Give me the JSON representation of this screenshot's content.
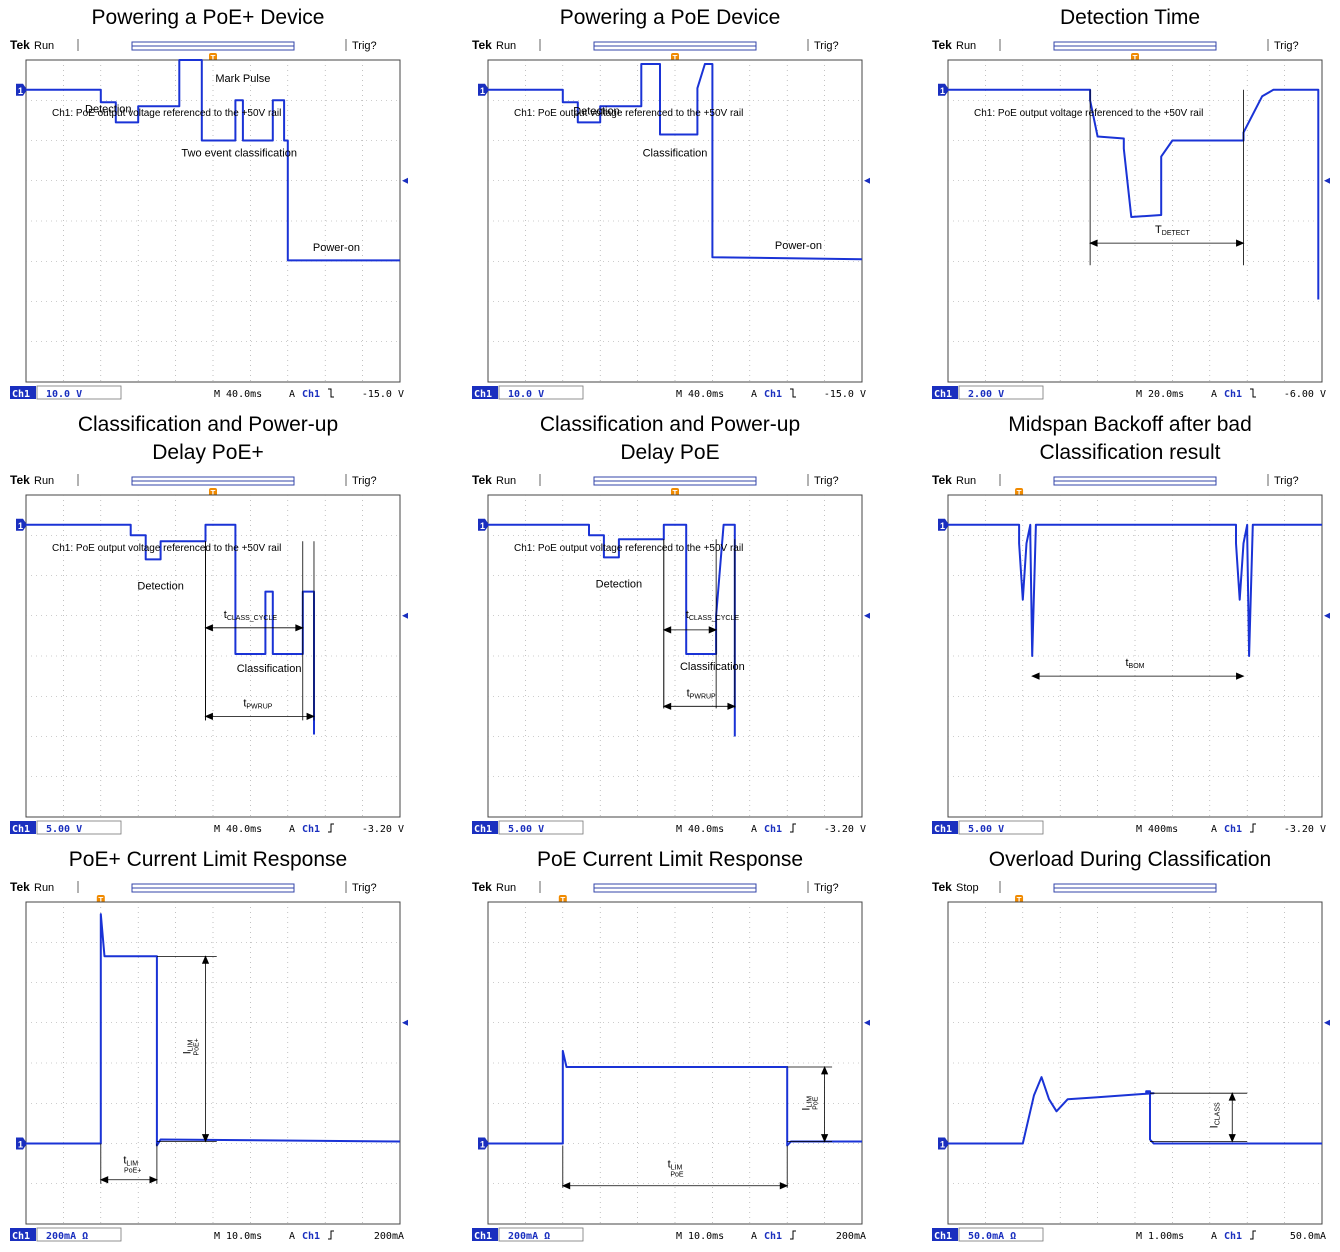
{
  "chart_data": [
    {
      "type": "line",
      "title": "Powering a PoE+ Device",
      "header": {
        "brand": "Tek",
        "status": "Run",
        "trig": "Trig?"
      },
      "footer": {
        "channel": "Ch1",
        "scale": "10.0 V",
        "time": "M 40.0ms",
        "acq": "A",
        "trig_ch": "Ch1",
        "trig_edge": "fall",
        "trig_level": "-15.0 V"
      },
      "note": "Ch1: PoE output voltage referenced to the +50V rail",
      "wave": [
        [
          0,
          0.74
        ],
        [
          0.2,
          0.74
        ],
        [
          0.2,
          1.05
        ],
        [
          0.24,
          1.05
        ],
        [
          0.24,
          1.55
        ],
        [
          0.3,
          1.55
        ],
        [
          0.3,
          1.15
        ],
        [
          0.41,
          1.15
        ],
        [
          0.41,
          0
        ],
        [
          0.47,
          0
        ],
        [
          0.47,
          2
        ],
        [
          0.56,
          2
        ],
        [
          0.56,
          1.0
        ],
        [
          0.58,
          1.0
        ],
        [
          0.58,
          2
        ],
        [
          0.66,
          2
        ],
        [
          0.66,
          1.0
        ],
        [
          0.69,
          1.0
        ],
        [
          0.69,
          2
        ],
        [
          0.7,
          2
        ],
        [
          0.7,
          4.98
        ],
        [
          1.0,
          4.98
        ]
      ],
      "annotations": [
        {
          "text": "Detection",
          "x": 0.22,
          "y": 1.3
        },
        {
          "text": "Mark Pulse",
          "x": 0.58,
          "y": 0.55
        },
        {
          "text": "Two event classification",
          "x": 0.57,
          "y": 2.4
        },
        {
          "text": "Power-on",
          "x": 0.83,
          "y": 4.75
        }
      ],
      "arrows": []
    },
    {
      "type": "line",
      "title": "Powering a PoE Device",
      "header": {
        "brand": "Tek",
        "status": "Run",
        "trig": "Trig?"
      },
      "footer": {
        "channel": "Ch1",
        "scale": "10.0 V",
        "time": "M 40.0ms",
        "acq": "A",
        "trig_ch": "Ch1",
        "trig_edge": "fall",
        "trig_level": "-15.0 V"
      },
      "note": "Ch1: PoE output voltage referenced to the +50V rail",
      "wave": [
        [
          0,
          0.74
        ],
        [
          0.2,
          0.74
        ],
        [
          0.2,
          1.05
        ],
        [
          0.24,
          1.05
        ],
        [
          0.24,
          1.55
        ],
        [
          0.3,
          1.55
        ],
        [
          0.3,
          1.15
        ],
        [
          0.41,
          1.15
        ],
        [
          0.41,
          0.1
        ],
        [
          0.46,
          0.1
        ],
        [
          0.46,
          1.85
        ],
        [
          0.56,
          1.85
        ],
        [
          0.56,
          0.7
        ],
        [
          0.58,
          0.1
        ],
        [
          0.6,
          0.1
        ],
        [
          0.6,
          4.9
        ],
        [
          1.0,
          4.95
        ]
      ],
      "annotations": [
        {
          "text": "Detection",
          "x": 0.29,
          "y": 1.35
        },
        {
          "text": "Classification",
          "x": 0.5,
          "y": 2.4
        },
        {
          "text": "Power-on",
          "x": 0.83,
          "y": 4.7
        }
      ],
      "arrows": []
    },
    {
      "type": "line",
      "title": "Detection Time",
      "header": {
        "brand": "Tek",
        "status": "Run",
        "trig": "Trig?"
      },
      "footer": {
        "channel": "Ch1",
        "scale": "2.00 V",
        "time": "M 20.0ms",
        "acq": "A",
        "trig_ch": "Ch1",
        "trig_edge": "fall",
        "trig_level": "-6.00 V"
      },
      "note": "Ch1: PoE output voltage referenced to the +50V rail",
      "wave": [
        [
          0,
          0.74
        ],
        [
          0.38,
          0.74
        ],
        [
          0.38,
          1.0
        ],
        [
          0.4,
          1.9
        ],
        [
          0.47,
          1.95
        ],
        [
          0.47,
          2.2
        ],
        [
          0.49,
          3.9
        ],
        [
          0.57,
          3.85
        ],
        [
          0.57,
          2.4
        ],
        [
          0.6,
          2.0
        ],
        [
          0.79,
          2.0
        ],
        [
          0.79,
          1.8
        ],
        [
          0.84,
          0.9
        ],
        [
          0.87,
          0.74
        ],
        [
          0.99,
          0.74
        ],
        [
          0.99,
          5.95
        ]
      ],
      "annotations": [
        {
          "text": "T",
          "sub": "DETECT",
          "x": 0.6,
          "y": 4.3
        }
      ],
      "arrows": [
        {
          "x1": 0.38,
          "x2": 0.79,
          "y": 4.55,
          "y_top": 0.74,
          "y_bottom": 5.1
        }
      ]
    },
    {
      "type": "line",
      "title": "Classification and Power-up\nDelay PoE+",
      "header": {
        "brand": "Tek",
        "status": "Run",
        "trig": "Trig?"
      },
      "footer": {
        "channel": "Ch1",
        "scale": "5.00 V",
        "time": "M 40.0ms",
        "acq": "A",
        "trig_ch": "Ch1",
        "trig_edge": "rise",
        "trig_level": "-3.20 V"
      },
      "note": "Ch1: PoE output voltage referenced to the +50V rail",
      "wave": [
        [
          0,
          0.74
        ],
        [
          0.28,
          0.74
        ],
        [
          0.28,
          1.0
        ],
        [
          0.32,
          1.0
        ],
        [
          0.32,
          1.6
        ],
        [
          0.36,
          1.6
        ],
        [
          0.36,
          1.15
        ],
        [
          0.48,
          1.15
        ],
        [
          0.48,
          0.74
        ],
        [
          0.56,
          0.74
        ],
        [
          0.56,
          3.95
        ],
        [
          0.64,
          3.95
        ],
        [
          0.64,
          2.4
        ],
        [
          0.66,
          2.4
        ],
        [
          0.66,
          3.95
        ],
        [
          0.74,
          3.95
        ],
        [
          0.74,
          2.4
        ],
        [
          0.77,
          2.4
        ],
        [
          0.77,
          5.95
        ]
      ],
      "annotations": [
        {
          "text": "Detection",
          "x": 0.36,
          "y": 2.35
        },
        {
          "text": "t",
          "sub": "CLASS_CYCLE",
          "x": 0.6,
          "y": 3.05
        },
        {
          "text": "Classification",
          "x": 0.65,
          "y": 4.4
        },
        {
          "text": "t",
          "sub": "PWRUP",
          "x": 0.62,
          "y": 5.25
        }
      ],
      "arrows": [
        {
          "x1": 0.48,
          "x2": 0.74,
          "y": 3.3,
          "y_top": 1.15,
          "y_bottom": 5.6
        },
        {
          "x1": 0.48,
          "x2": 0.77,
          "y": 5.5,
          "y_top": 1.15,
          "y_bottom": 5.6
        }
      ]
    },
    {
      "type": "line",
      "title": "Classification and Power-up\nDelay PoE",
      "header": {
        "brand": "Tek",
        "status": "Run",
        "trig": "Trig?"
      },
      "footer": {
        "channel": "Ch1",
        "scale": "5.00 V",
        "time": "M 40.0ms",
        "acq": "A",
        "trig_ch": "Ch1",
        "trig_edge": "rise",
        "trig_level": "-3.20 V"
      },
      "note": "Ch1: PoE output voltage referenced to the +50V rail",
      "wave": [
        [
          0,
          0.74
        ],
        [
          0.27,
          0.74
        ],
        [
          0.27,
          1.0
        ],
        [
          0.31,
          1.0
        ],
        [
          0.31,
          1.55
        ],
        [
          0.35,
          1.55
        ],
        [
          0.35,
          1.1
        ],
        [
          0.47,
          1.1
        ],
        [
          0.47,
          0.74
        ],
        [
          0.53,
          0.74
        ],
        [
          0.53,
          3.95
        ],
        [
          0.61,
          3.95
        ],
        [
          0.61,
          3.0
        ],
        [
          0.63,
          0.74
        ],
        [
          0.66,
          0.74
        ],
        [
          0.66,
          6.0
        ]
      ],
      "annotations": [
        {
          "text": "Detection",
          "x": 0.35,
          "y": 2.3
        },
        {
          "text": "t",
          "sub": "CLASS_CYCLE",
          "x": 0.6,
          "y": 3.05
        },
        {
          "text": "Classification",
          "x": 0.6,
          "y": 4.35
        },
        {
          "text": "t",
          "sub": "PWRUP",
          "x": 0.57,
          "y": 5.0
        }
      ],
      "arrows": [
        {
          "x1": 0.47,
          "x2": 0.61,
          "y": 3.35,
          "y_top": 1.1,
          "y_bottom": 5.3
        },
        {
          "x1": 0.47,
          "x2": 0.66,
          "y": 5.25,
          "y_top": 1.1,
          "y_bottom": 5.3
        }
      ]
    },
    {
      "type": "line",
      "title": "Midspan Backoff after bad\nClassification result",
      "header": {
        "brand": "Tek",
        "status": "Run",
        "trig": "Trig?"
      },
      "footer": {
        "channel": "Ch1",
        "scale": "5.00 V",
        "time": "M 400ms",
        "acq": "A",
        "trig_ch": "Ch1",
        "trig_edge": "rise",
        "trig_level": "-3.20 V"
      },
      "note": "",
      "wave": [
        [
          0,
          0.74
        ],
        [
          0.19,
          0.74
        ],
        [
          0.19,
          1.2
        ],
        [
          0.2,
          2.6
        ],
        [
          0.21,
          1.2
        ],
        [
          0.22,
          0.74
        ],
        [
          0.22,
          1.0
        ],
        [
          0.225,
          4.0
        ],
        [
          0.235,
          0.74
        ],
        [
          0.77,
          0.74
        ],
        [
          0.77,
          1.2
        ],
        [
          0.78,
          2.6
        ],
        [
          0.79,
          1.2
        ],
        [
          0.8,
          0.74
        ],
        [
          0.8,
          1.0
        ],
        [
          0.805,
          4.0
        ],
        [
          0.815,
          0.74
        ],
        [
          1.0,
          0.74
        ]
      ],
      "annotations": [
        {
          "text": "t",
          "sub": "BOM",
          "x": 0.5,
          "y": 4.25
        }
      ],
      "arrows": [
        {
          "x1": 0.225,
          "x2": 0.79,
          "y": 4.5,
          "y_top": null,
          "y_bottom": null
        }
      ]
    },
    {
      "type": "line",
      "title": "PoE+ Current Limit Response",
      "header": {
        "brand": "Tek",
        "status": "Run",
        "trig": "Trig?"
      },
      "footer": {
        "channel": "Ch1",
        "scale": "200mA Ω",
        "time": "M 10.0ms",
        "acq": "A",
        "trig_ch": "Ch1",
        "trig_edge": "rise",
        "trig_level": "200mA"
      },
      "note": "",
      "wave": [
        [
          0,
          6.0
        ],
        [
          0.2,
          6.0
        ],
        [
          0.2,
          0.3
        ],
        [
          0.21,
          1.35
        ],
        [
          0.35,
          1.35
        ],
        [
          0.35,
          6.05
        ],
        [
          0.36,
          5.9
        ],
        [
          1.0,
          5.95
        ]
      ],
      "annotations": [
        {
          "text": "I",
          "sub": "LIM",
          "sub2": "PoE+",
          "x": 0.44,
          "y": 3.6,
          "rot": true
        },
        {
          "text": "t",
          "sub": "LIM",
          "sub2": "PoE+",
          "x": 0.28,
          "y": 6.5
        }
      ],
      "arrows": [
        {
          "vertical": true,
          "x": 0.48,
          "y1": 1.35,
          "y2": 5.95,
          "x_left": 0.35,
          "x_right": 0.51
        },
        {
          "x1": 0.2,
          "x2": 0.35,
          "y": 6.9,
          "y_top": 6.0,
          "y_bottom": 7.0
        }
      ]
    },
    {
      "type": "line",
      "title": "PoE Current Limit Response",
      "header": {
        "brand": "Tek",
        "status": "Run",
        "trig": "Trig?"
      },
      "footer": {
        "channel": "Ch1",
        "scale": "200mA Ω",
        "time": "M 10.0ms",
        "acq": "A",
        "trig_ch": "Ch1",
        "trig_edge": "rise",
        "trig_level": "200mA"
      },
      "note": "",
      "wave": [
        [
          0,
          6.0
        ],
        [
          0.2,
          6.0
        ],
        [
          0.2,
          3.7
        ],
        [
          0.21,
          4.1
        ],
        [
          0.8,
          4.1
        ],
        [
          0.8,
          6.05
        ],
        [
          0.81,
          5.95
        ],
        [
          1.0,
          5.95
        ]
      ],
      "annotations": [
        {
          "text": "I",
          "sub": "LIM",
          "sub2": "PoE",
          "x": 0.86,
          "y": 5.0,
          "rot": true
        },
        {
          "text": "t",
          "sub": "LIM",
          "sub2": "PoE",
          "x": 0.5,
          "y": 6.6
        }
      ],
      "arrows": [
        {
          "vertical": true,
          "x": 0.9,
          "y1": 4.1,
          "y2": 5.95,
          "x_left": 0.8,
          "x_right": 0.92
        },
        {
          "x1": 0.2,
          "x2": 0.8,
          "y": 7.05,
          "y_top": 6.05,
          "y_bottom": 7.1
        }
      ]
    },
    {
      "type": "line",
      "title": "Overload During Classification",
      "header": {
        "brand": "Tek",
        "status": "Stop",
        "trig": ""
      },
      "footer": {
        "channel": "Ch1",
        "scale": "50.0mA Ω",
        "time": "M 1.00ms",
        "acq": "A",
        "trig_ch": "Ch1",
        "trig_edge": "rise",
        "trig_level": "50.0mA"
      },
      "note": "",
      "wave": [
        [
          0,
          6.0
        ],
        [
          0.2,
          6.0
        ],
        [
          0.23,
          4.8
        ],
        [
          0.25,
          4.35
        ],
        [
          0.27,
          4.9
        ],
        [
          0.29,
          5.2
        ],
        [
          0.32,
          4.9
        ],
        [
          0.4,
          4.85
        ],
        [
          0.55,
          4.75
        ],
        [
          0.53,
          4.75
        ],
        [
          0.53,
          4.7
        ],
        [
          0.54,
          4.7
        ],
        [
          0.54,
          5.9
        ],
        [
          0.55,
          6.0
        ],
        [
          1.0,
          6.0
        ]
      ],
      "annotations": [
        {
          "text": "I",
          "sub": "CLASS",
          "x": 0.72,
          "y": 5.3,
          "rot": true
        }
      ],
      "arrows": [
        {
          "vertical": true,
          "x": 0.76,
          "y1": 4.75,
          "y2": 5.95,
          "x_left": 0.54,
          "x_right": 0.8
        }
      ]
    }
  ]
}
